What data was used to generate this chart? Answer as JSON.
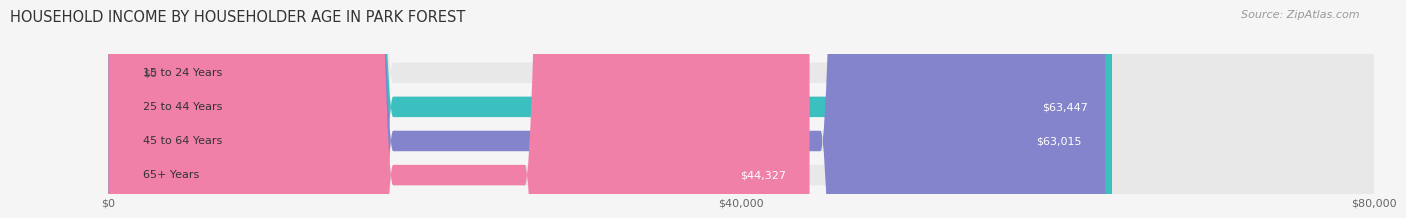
{
  "title": "HOUSEHOLD INCOME BY HOUSEHOLDER AGE IN PARK FOREST",
  "source": "Source: ZipAtlas.com",
  "categories": [
    "15 to 24 Years",
    "25 to 44 Years",
    "45 to 64 Years",
    "65+ Years"
  ],
  "values": [
    0,
    63447,
    63015,
    44327
  ],
  "value_labels": [
    "$0",
    "$63,447",
    "$63,015",
    "$44,327"
  ],
  "bar_colors": [
    "#c9a8d4",
    "#3bbfbf",
    "#8484cc",
    "#f080a8"
  ],
  "bar_bg_color": "#e8e8e8",
  "max_value": 80000,
  "xticks": [
    0,
    40000,
    80000
  ],
  "xtick_labels": [
    "$0",
    "$40,000",
    "$80,000"
  ],
  "title_fontsize": 10.5,
  "source_fontsize": 8,
  "background_color": "#f5f5f5"
}
